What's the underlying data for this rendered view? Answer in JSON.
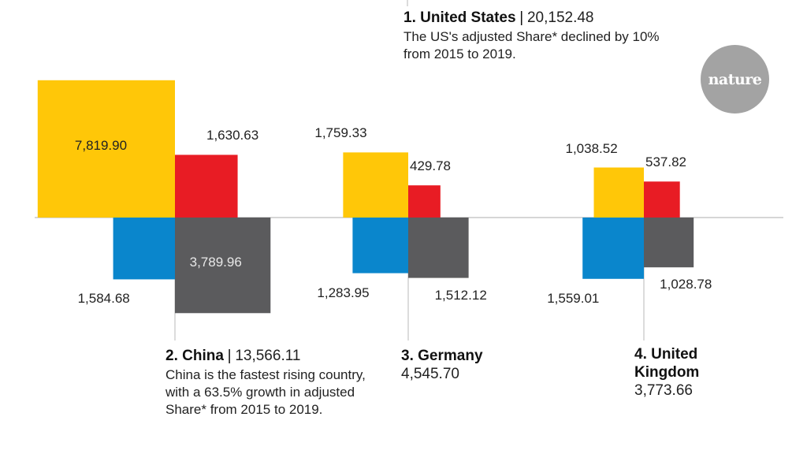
{
  "logo": {
    "text": "nature"
  },
  "chart_data": {
    "type": "area-proportional squares",
    "title": "",
    "note": "Four component values per country drawn as squares around a shared baseline; a fifth total is shown in text",
    "series_colors": [
      "#ffc708",
      "#e81c24",
      "#0a86cc",
      "#5b5b5d"
    ],
    "countries": [
      {
        "rank": "1.",
        "name": "United States",
        "total": "20,152.48",
        "description": "The US's adjusted Share* declined by 10% from 2015 to 2019.",
        "values": null
      },
      {
        "rank": "2.",
        "name": "China",
        "total": "13,566.11",
        "description": "China is the fastest rising country, with a 63.5% growth in adjusted Share* from 2015 to 2019.",
        "values": [
          7819.9,
          1630.63,
          1584.68,
          3789.96
        ],
        "labels": [
          "7,819.90",
          "1,630.63",
          "1,584.68",
          "3,789.96"
        ]
      },
      {
        "rank": "3.",
        "name": "Germany",
        "total": "4,545.70",
        "description": "",
        "values": [
          1759.33,
          429.78,
          1283.95,
          1512.12
        ],
        "labels": [
          "1,759.33",
          "429.78",
          "1,283.95",
          "1,512.12"
        ]
      },
      {
        "rank": "4.",
        "name": "United Kingdom",
        "total": "3,773.66",
        "description": "",
        "values": [
          1038.52,
          537.82,
          1559.01,
          1028.78
        ],
        "labels": [
          "1,038.52",
          "537.82",
          "1,559.01",
          "1,028.78"
        ]
      }
    ]
  }
}
